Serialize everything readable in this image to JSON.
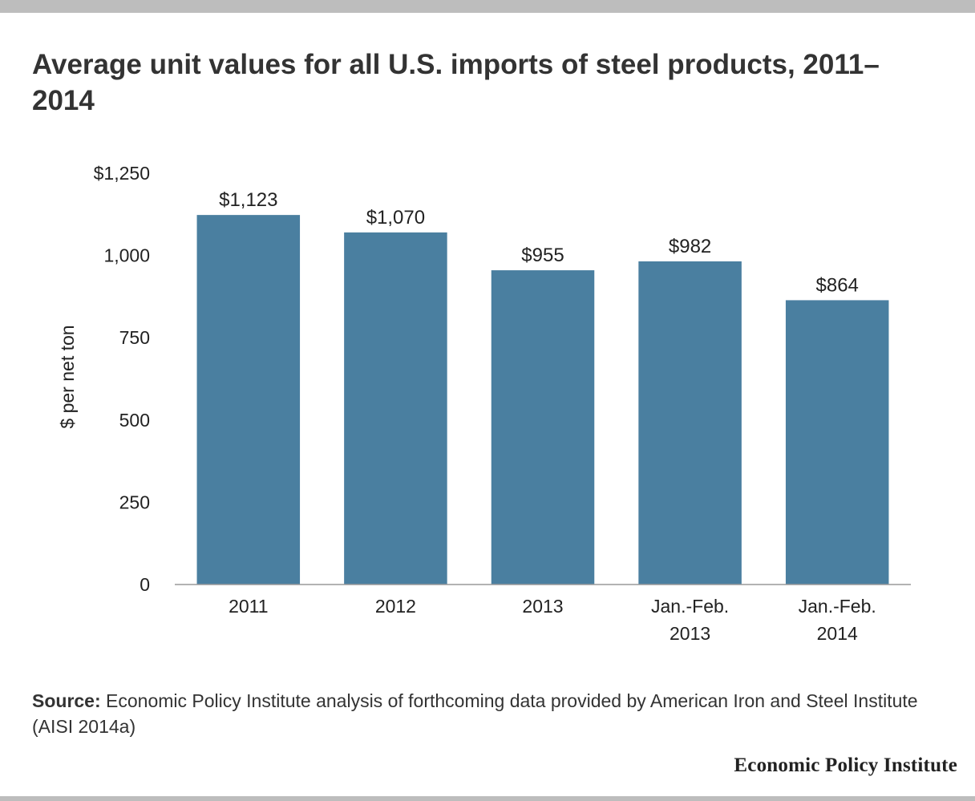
{
  "chart_data": {
    "type": "bar",
    "title": "Average unit values for all U.S. imports of steel products, 2011–2014",
    "categories": [
      [
        "2011"
      ],
      [
        "2012"
      ],
      [
        "2013"
      ],
      [
        "Jan.-Feb.",
        "2013"
      ],
      [
        "Jan.-Feb.",
        "2014"
      ]
    ],
    "values": [
      1123,
      1070,
      955,
      982,
      864
    ],
    "value_labels": [
      "$1,123",
      "$1,070",
      "$955",
      "$982",
      "$864"
    ],
    "ylabel": "$ per net ton",
    "ylim": [
      0,
      1250
    ],
    "yticks": [
      0,
      250,
      500,
      750,
      1000,
      1250
    ],
    "ytick_labels": [
      "0",
      "250",
      "500",
      "750",
      "1,000",
      "$1,250"
    ],
    "grid": false,
    "bar_color": "#4a7fa0"
  },
  "source": {
    "label": "Source:",
    "text": "Economic Policy Institute analysis of forthcoming data provided by American Iron and Steel Institute (AISI 2014a)"
  },
  "brand": "Economic Policy Institute"
}
